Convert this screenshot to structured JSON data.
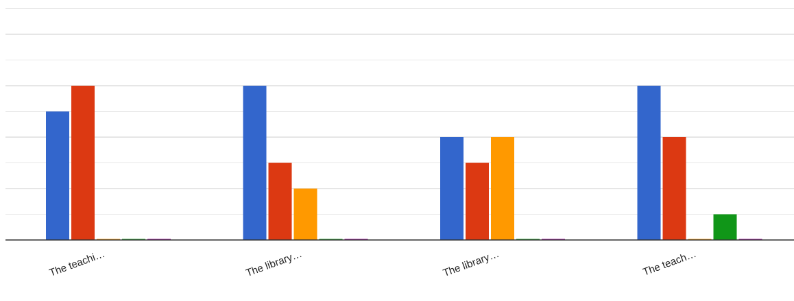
{
  "chart_data": {
    "type": "bar",
    "title": "",
    "xlabel": "",
    "ylabel": "",
    "categories": [
      "The teachi…",
      "The library…",
      "The library…",
      "The teach…"
    ],
    "ylim": [
      0,
      9
    ],
    "grid": true,
    "y_ticks_visible": false,
    "series": [
      {
        "color": "#3366cc",
        "values": [
          5,
          6,
          4,
          6
        ]
      },
      {
        "color": "#dc3912",
        "values": [
          6,
          3,
          3,
          4
        ]
      },
      {
        "color": "#ff9900",
        "values": [
          0,
          2,
          4,
          0
        ]
      },
      {
        "color": "#109618",
        "values": [
          0,
          0,
          0,
          1
        ]
      },
      {
        "color": "#990099",
        "values": [
          0,
          0,
          0,
          0
        ]
      }
    ]
  }
}
